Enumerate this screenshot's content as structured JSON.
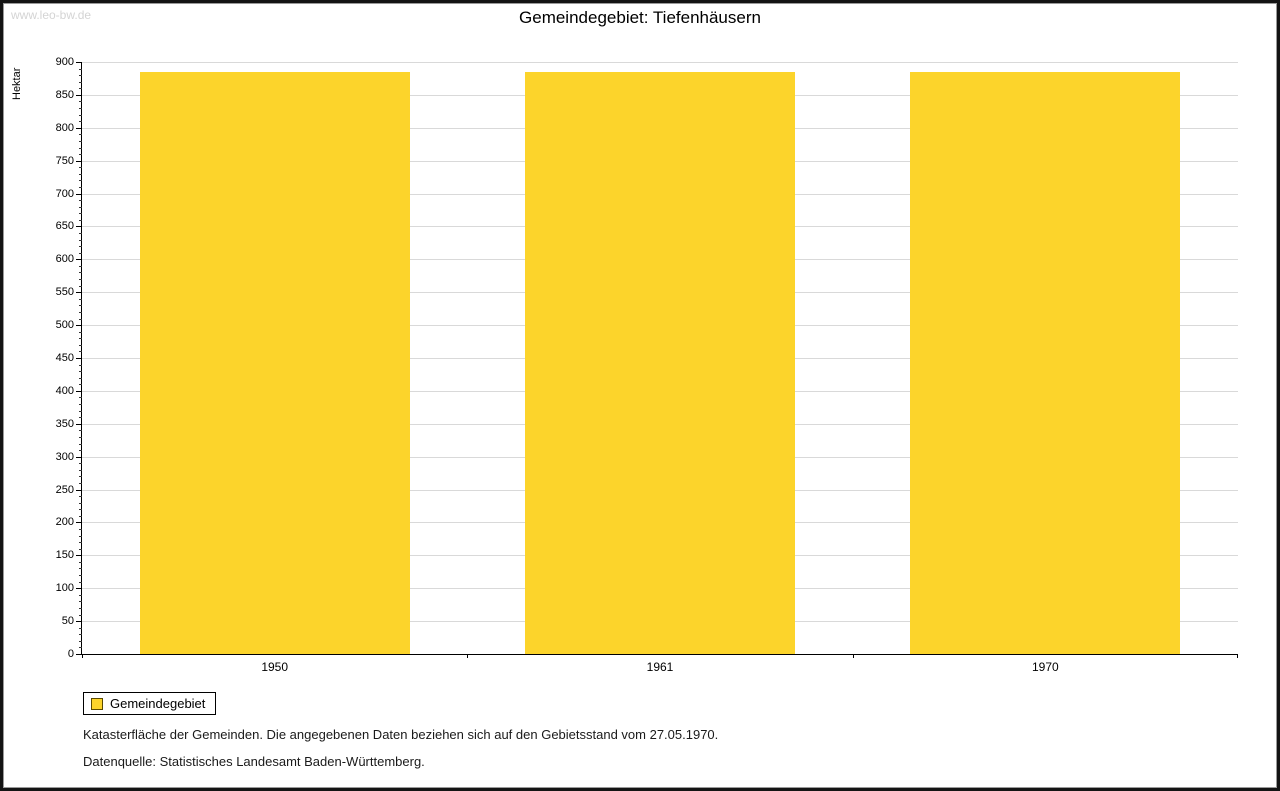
{
  "watermark": "www.leo-bw.de",
  "title": "Gemeindegebiet: Tiefenhäusern",
  "legend": {
    "label": "Gemeindegebiet",
    "swatch_color": "#fcd42b"
  },
  "footnotes": {
    "line1": "Katasterfläche der Gemeinden. Die angegebenen Daten beziehen sich auf den Gebietsstand vom 27.05.1970.",
    "line2": "Datenquelle: Statistisches Landesamt Baden-Württemberg."
  },
  "chart_data": {
    "type": "bar",
    "title": "Gemeindegebiet: Tiefenhäusern",
    "categories": [
      "1950",
      "1961",
      "1970"
    ],
    "values": [
      885,
      885,
      885
    ],
    "series_name": "Gemeindegebiet",
    "xlabel": "",
    "ylabel": "Hektar",
    "ylim": [
      0,
      900
    ],
    "ytick_step": 50,
    "minor_tick_step": 10,
    "grid": true,
    "legend_position": "bottom-left",
    "bar_color": "#fcd42b",
    "bar_width_fraction": 0.7
  }
}
